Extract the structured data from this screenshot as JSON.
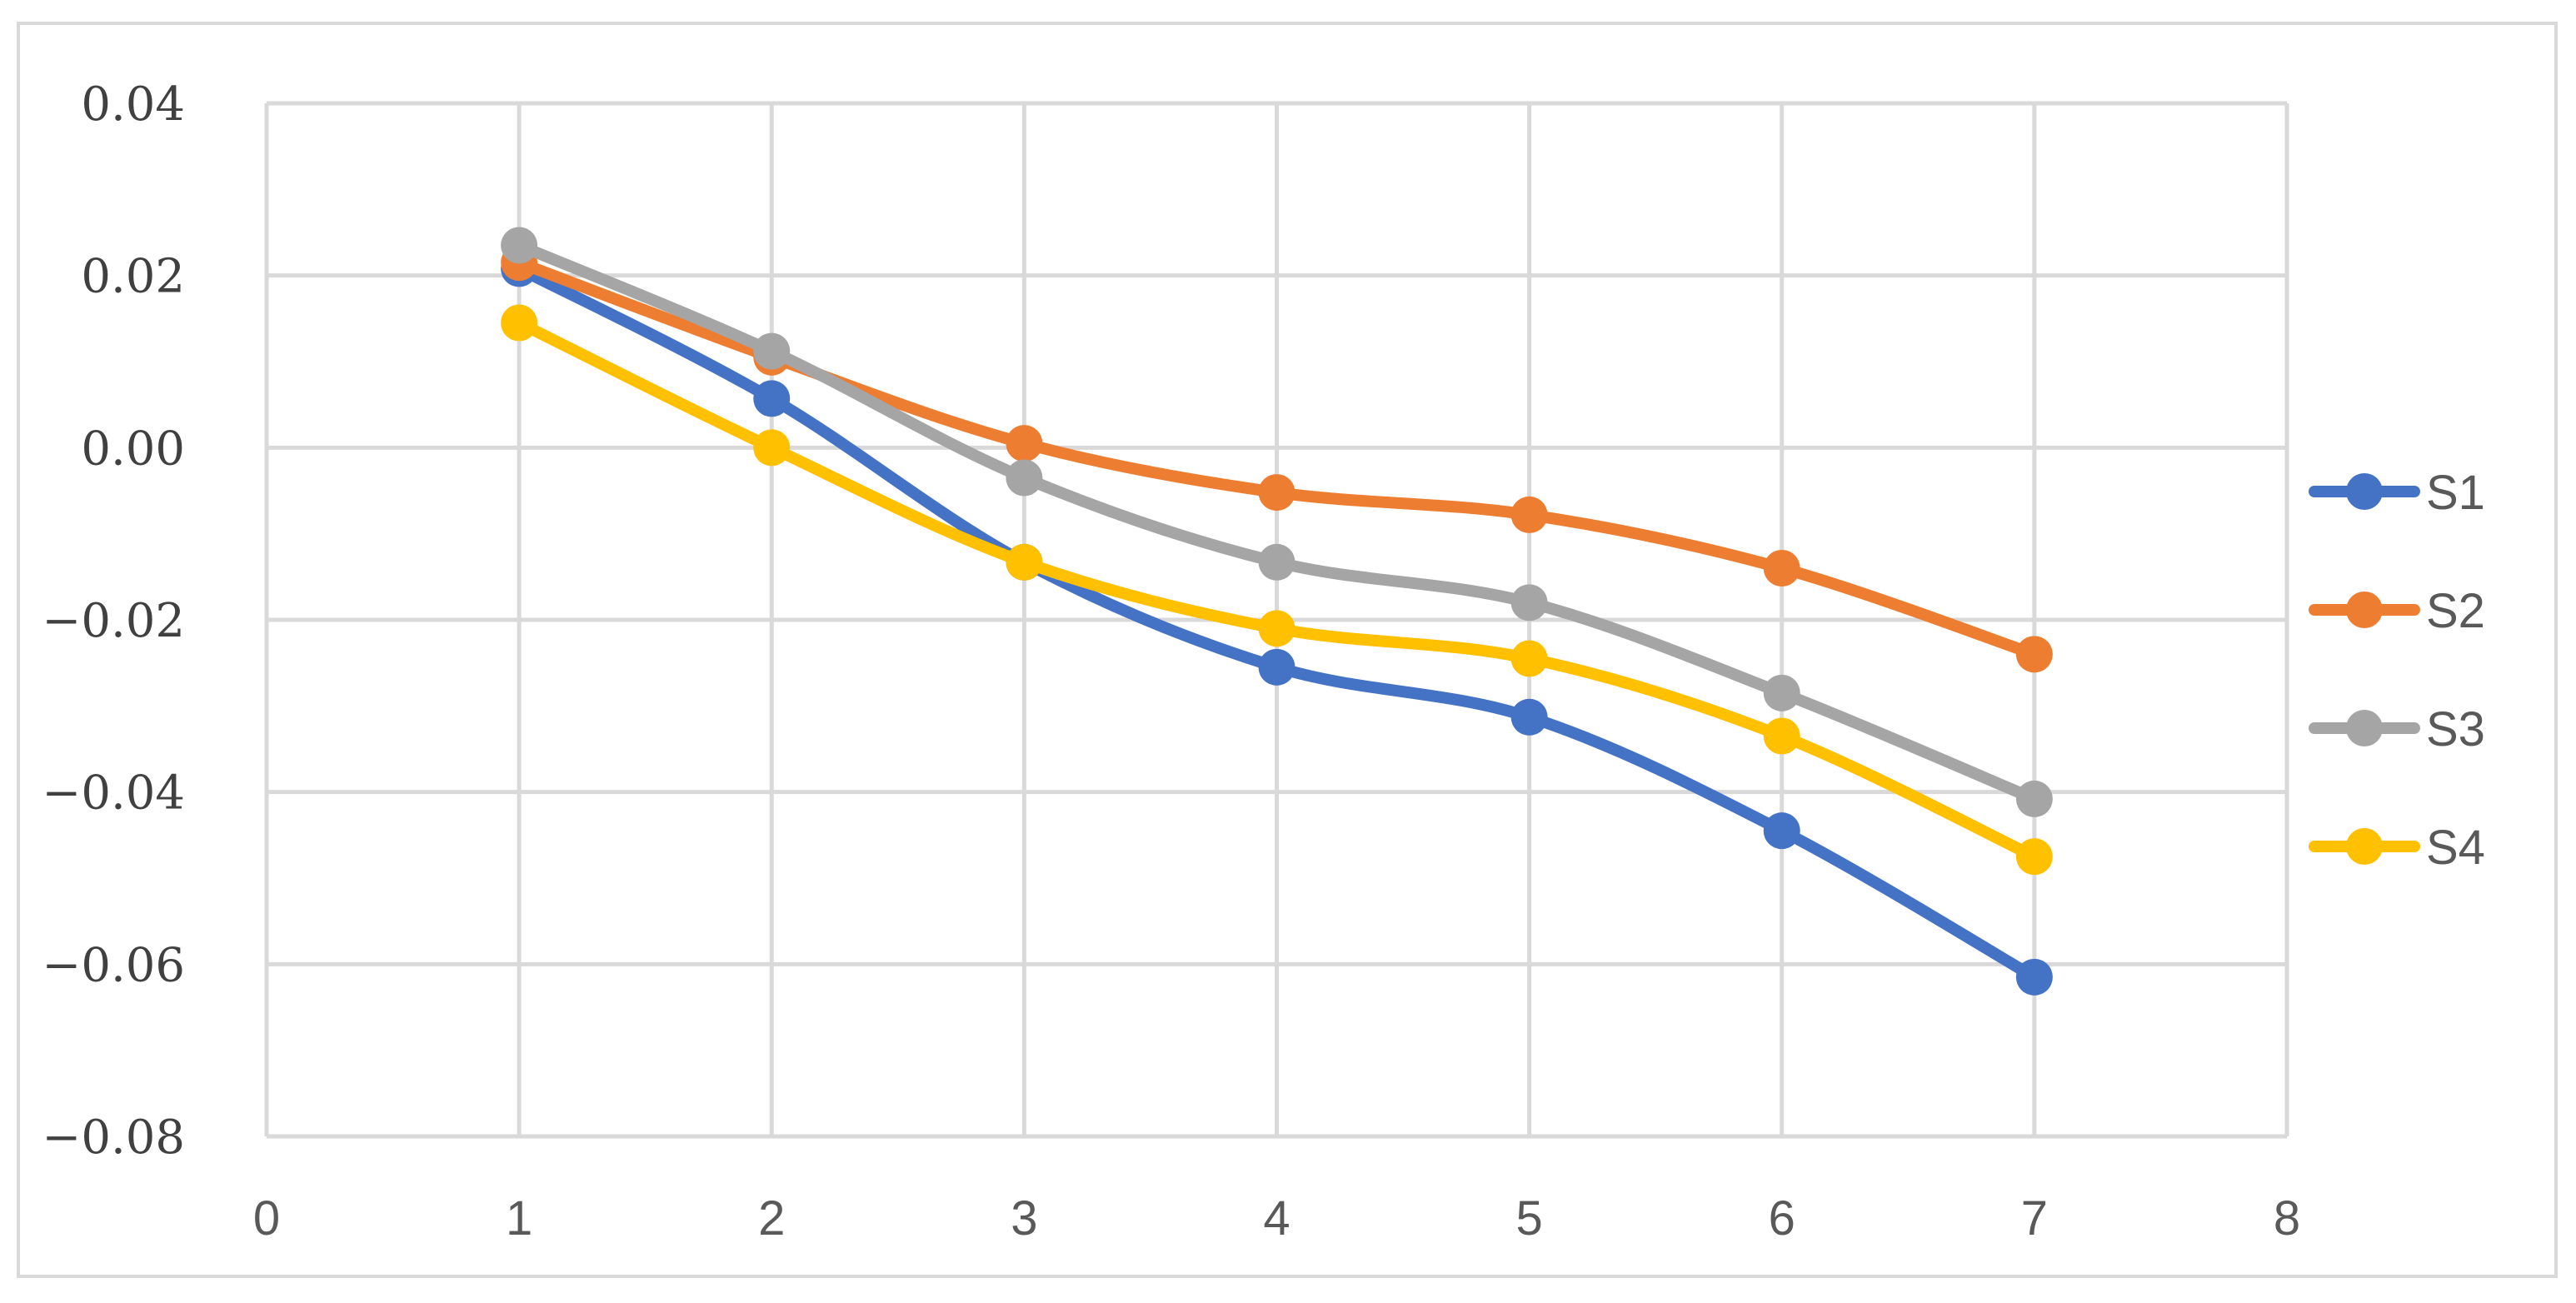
{
  "chart_data": {
    "type": "line",
    "x": [
      1,
      2,
      3,
      4,
      5,
      6,
      7
    ],
    "xlim": [
      0,
      8
    ],
    "xticks": [
      "0",
      "1",
      "2",
      "3",
      "4",
      "5",
      "6",
      "7",
      "8"
    ],
    "ylim": [
      -0.08,
      0.04
    ],
    "yticks": [
      "0.04",
      "0.02",
      "0.00",
      "−0.02",
      "−0.04",
      "−0.06",
      "−0.08"
    ],
    "ytick_values": [
      0.04,
      0.02,
      0.0,
      -0.02,
      -0.04,
      -0.06,
      -0.08
    ],
    "grid": true,
    "legend_position": "right",
    "smooth": true,
    "series": [
      {
        "name": "S1",
        "color": "#4472c4",
        "values": [
          0.0208,
          0.0057,
          -0.0133,
          -0.0255,
          -0.0313,
          -0.0445,
          -0.0615
        ]
      },
      {
        "name": "S2",
        "color": "#ed7d31",
        "values": [
          0.0215,
          0.0105,
          0.0005,
          -0.0052,
          -0.0078,
          -0.014,
          -0.024
        ]
      },
      {
        "name": "S3",
        "color": "#a5a5a5",
        "values": [
          0.0235,
          0.0112,
          -0.0035,
          -0.0133,
          -0.018,
          -0.0285,
          -0.0408
        ]
      },
      {
        "name": "S4",
        "color": "#ffc000",
        "values": [
          0.0145,
          0.0,
          -0.0133,
          -0.021,
          -0.0245,
          -0.0335,
          -0.0475
        ]
      }
    ]
  }
}
